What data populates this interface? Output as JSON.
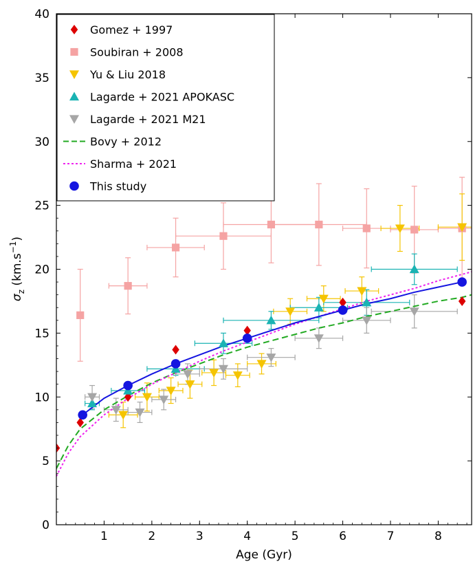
{
  "chart_data": {
    "type": "scatter",
    "xlabel": "Age (Gyr)",
    "ylabel_main": "σ",
    "ylabel_sub": "z",
    "ylabel_rest": " (km.s",
    "ylabel_sup": "−1",
    "ylabel_close": ")",
    "xlim": [
      0,
      8.7
    ],
    "ylim": [
      0,
      40
    ],
    "xticks": [
      1,
      2,
      3,
      4,
      5,
      6,
      7,
      8
    ],
    "yticks": [
      0,
      5,
      10,
      15,
      20,
      25,
      30,
      35,
      40
    ],
    "grid": false,
    "legend_position": "top-left",
    "series": [
      {
        "name": "Gomez + 1997",
        "marker": "diamond",
        "color": "#dd0000",
        "points": [
          {
            "x": 0.0,
            "y": 6.0
          },
          {
            "x": 0.5,
            "y": 8.0
          },
          {
            "x": 1.5,
            "y": 10.0
          },
          {
            "x": 2.5,
            "y": 13.7
          },
          {
            "x": 4.0,
            "y": 15.2
          },
          {
            "x": 6.0,
            "y": 17.4
          },
          {
            "x": 8.5,
            "y": 17.5
          }
        ]
      },
      {
        "name": "Soubiran + 2008",
        "marker": "square",
        "color": "#f5a3a3",
        "points": [
          {
            "x": 0.5,
            "y": 16.4,
            "xerr": 0.05,
            "yerr": 3.6
          },
          {
            "x": 1.5,
            "y": 18.7,
            "xerr": 0.4,
            "yerr": 2.2
          },
          {
            "x": 2.5,
            "y": 21.7,
            "xerr": 0.6,
            "yerr": 2.3
          },
          {
            "x": 3.5,
            "y": 22.6,
            "xerr": 1.0,
            "yerr": 2.6
          },
          {
            "x": 4.5,
            "y": 23.5,
            "xerr": 1.0,
            "yerr": 3.0
          },
          {
            "x": 5.5,
            "y": 23.5,
            "xerr": 1.0,
            "yerr": 3.2
          },
          {
            "x": 6.5,
            "y": 23.2,
            "xerr": 0.5,
            "yerr": 3.1
          },
          {
            "x": 7.5,
            "y": 23.1,
            "xerr": 0.5,
            "yerr": 3.4
          },
          {
            "x": 8.5,
            "y": 23.2,
            "xerr": 0.5,
            "yerr": 4.0
          }
        ]
      },
      {
        "name": "Yu & Liu 2018",
        "marker": "triangle-down",
        "color": "#f5c400",
        "points": [
          {
            "x": 1.4,
            "y": 8.6,
            "xerr": 0.3,
            "yerr": 1.0
          },
          {
            "x": 1.9,
            "y": 10.0,
            "xerr": 0.25,
            "yerr": 1.1
          },
          {
            "x": 2.4,
            "y": 10.5,
            "xerr": 0.25,
            "yerr": 1.0
          },
          {
            "x": 2.8,
            "y": 11.0,
            "xerr": 0.25,
            "yerr": 1.1
          },
          {
            "x": 3.3,
            "y": 11.9,
            "xerr": 0.25,
            "yerr": 1.0
          },
          {
            "x": 3.8,
            "y": 11.7,
            "xerr": 0.25,
            "yerr": 0.9
          },
          {
            "x": 4.3,
            "y": 12.6,
            "xerr": 0.3,
            "yerr": 0.8
          },
          {
            "x": 4.9,
            "y": 16.7,
            "xerr": 0.35,
            "yerr": 1.0
          },
          {
            "x": 5.6,
            "y": 17.7,
            "xerr": 0.35,
            "yerr": 1.0
          },
          {
            "x": 6.4,
            "y": 18.3,
            "xerr": 0.35,
            "yerr": 1.1
          },
          {
            "x": 7.2,
            "y": 23.2,
            "xerr": 0.4,
            "yerr": 1.8
          },
          {
            "x": 8.5,
            "y": 23.3,
            "xerr": 0.5,
            "yerr": 2.6
          }
        ]
      },
      {
        "name": "Lagarde + 2021 APOKASC",
        "marker": "triangle-up",
        "color": "#1ab3b3",
        "points": [
          {
            "x": 0.75,
            "y": 9.5,
            "xerr": 0.15,
            "yerr": 0.5
          },
          {
            "x": 1.5,
            "y": 10.5,
            "xerr": 0.35,
            "yerr": 0.4
          },
          {
            "x": 2.5,
            "y": 12.2,
            "xerr": 0.6,
            "yerr": 0.5
          },
          {
            "x": 3.5,
            "y": 14.2,
            "xerr": 0.6,
            "yerr": 0.8
          },
          {
            "x": 4.5,
            "y": 16.0,
            "xerr": 1.0,
            "yerr": 0.7
          },
          {
            "x": 5.5,
            "y": 17.0,
            "xerr": 0.6,
            "yerr": 0.8
          },
          {
            "x": 6.5,
            "y": 17.4,
            "xerr": 0.9,
            "yerr": 1.0
          },
          {
            "x": 7.5,
            "y": 20.0,
            "xerr": 0.9,
            "yerr": 1.2
          }
        ]
      },
      {
        "name": "Lagarde + 2021 M21",
        "marker": "triangle-down",
        "color": "#a6a6a6",
        "points": [
          {
            "x": 0.75,
            "y": 10.0,
            "xerr": 0.15,
            "yerr": 0.9
          },
          {
            "x": 1.25,
            "y": 9.0,
            "xerr": 0.25,
            "yerr": 0.9
          },
          {
            "x": 1.75,
            "y": 8.8,
            "xerr": 0.25,
            "yerr": 0.8
          },
          {
            "x": 2.25,
            "y": 9.8,
            "xerr": 0.25,
            "yerr": 0.8
          },
          {
            "x": 2.75,
            "y": 11.8,
            "xerr": 0.25,
            "yerr": 0.8
          },
          {
            "x": 3.5,
            "y": 12.2,
            "xerr": 0.5,
            "yerr": 0.8
          },
          {
            "x": 4.5,
            "y": 13.1,
            "xerr": 0.5,
            "yerr": 0.7
          },
          {
            "x": 5.5,
            "y": 14.6,
            "xerr": 0.5,
            "yerr": 0.8
          },
          {
            "x": 6.5,
            "y": 16.0,
            "xerr": 0.5,
            "yerr": 1.0
          },
          {
            "x": 7.5,
            "y": 16.7,
            "xerr": 0.9,
            "yerr": 1.3
          }
        ]
      },
      {
        "name": "This study",
        "marker": "circle",
        "color": "#1515e0",
        "points": [
          {
            "x": 0.55,
            "y": 8.6
          },
          {
            "x": 1.5,
            "y": 10.9
          },
          {
            "x": 2.5,
            "y": 12.6
          },
          {
            "x": 4.0,
            "y": 14.6
          },
          {
            "x": 6.0,
            "y": 16.8
          },
          {
            "x": 8.5,
            "y": 19.0
          }
        ]
      }
    ],
    "curves": [
      {
        "name": "Bovy + 2012",
        "style": "dashed",
        "color": "#22aa22",
        "x": [
          0.0,
          0.25,
          0.5,
          1.0,
          1.5,
          2.0,
          2.5,
          3.0,
          3.5,
          4.0,
          4.5,
          5.0,
          5.5,
          6.0,
          6.5,
          7.0,
          7.5,
          8.0,
          8.5,
          8.7
        ],
        "y": [
          4.4,
          6.2,
          7.5,
          9.0,
          10.1,
          11.1,
          11.9,
          12.6,
          13.3,
          13.9,
          14.4,
          14.9,
          15.4,
          15.8,
          16.3,
          16.7,
          17.1,
          17.5,
          17.8,
          18.0
        ]
      },
      {
        "name": "Sharma + 2021",
        "style": "dotted",
        "color": "#ee22ee",
        "x": [
          0.0,
          0.25,
          0.5,
          1.0,
          1.5,
          2.0,
          2.5,
          3.0,
          3.5,
          4.0,
          4.5,
          5.0,
          5.5,
          6.0,
          6.5,
          7.0,
          7.5,
          8.0,
          8.5,
          8.7
        ],
        "y": [
          3.8,
          5.6,
          6.9,
          8.6,
          9.9,
          11.0,
          11.9,
          12.8,
          13.6,
          14.3,
          15.0,
          15.7,
          16.3,
          16.9,
          17.5,
          18.0,
          18.5,
          19.1,
          19.6,
          19.8
        ]
      },
      {
        "name": "This study fit",
        "style": "solid",
        "color": "#1515e0",
        "x": [
          0.55,
          1.0,
          1.5,
          2.0,
          2.5,
          3.0,
          3.5,
          4.0,
          4.5,
          5.0,
          5.5,
          6.0,
          6.5,
          7.0,
          7.5,
          8.0,
          8.5
        ],
        "y": [
          8.6,
          9.9,
          10.9,
          11.8,
          12.6,
          13.3,
          14.0,
          14.6,
          15.2,
          15.8,
          16.3,
          16.8,
          17.3,
          17.7,
          18.2,
          18.6,
          19.0
        ]
      }
    ],
    "legend": [
      {
        "label": "Gomez + 1997",
        "marker": "diamond",
        "color": "#dd0000"
      },
      {
        "label": "Soubiran + 2008",
        "marker": "square",
        "color": "#f5a3a3"
      },
      {
        "label": "Yu & Liu 2018",
        "marker": "triangle-down",
        "color": "#f5c400"
      },
      {
        "label": "Lagarde + 2021 APOKASC",
        "marker": "triangle-up",
        "color": "#1ab3b3"
      },
      {
        "label": "Lagarde + 2021 M21",
        "marker": "triangle-down",
        "color": "#a6a6a6"
      },
      {
        "label": "Bovy + 2012",
        "marker": "line-dashed",
        "color": "#22aa22"
      },
      {
        "label": "Sharma + 2021",
        "marker": "line-dotted",
        "color": "#ee22ee"
      },
      {
        "label": "This study",
        "marker": "circle",
        "color": "#1515e0"
      }
    ]
  }
}
